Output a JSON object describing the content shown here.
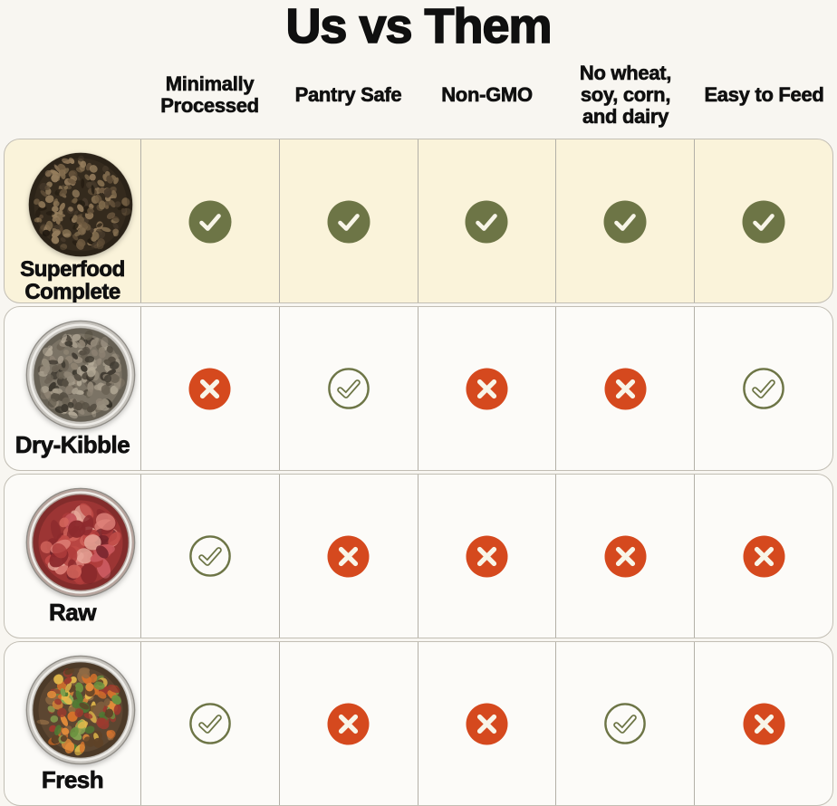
{
  "title": "Us vs Them",
  "columns": [
    "Minimally Processed",
    "Pantry Safe",
    "Non-GMO",
    "No wheat, soy, corn, and dairy",
    "Easy to Feed"
  ],
  "rows": [
    {
      "name": "Superfood Complete",
      "image": "superfood-complete-kibble-photo",
      "image_kind": "superfood",
      "highlight": true,
      "cells": [
        "yes",
        "yes",
        "yes",
        "yes",
        "yes"
      ]
    },
    {
      "name": "Dry-Kibble",
      "image": "dry-kibble-bowl-photo",
      "image_kind": "kibble",
      "highlight": false,
      "cells": [
        "no",
        "yes-outline",
        "no",
        "no",
        "yes-outline"
      ]
    },
    {
      "name": "Raw",
      "image": "raw-meat-bowl-photo",
      "image_kind": "raw",
      "highlight": false,
      "cells": [
        "yes-outline",
        "no",
        "no",
        "no",
        "no"
      ]
    },
    {
      "name": "Fresh",
      "image": "fresh-food-bowl-photo",
      "image_kind": "fresh",
      "highlight": false,
      "cells": [
        "yes-outline",
        "no",
        "no",
        "yes-outline",
        "no"
      ]
    }
  ],
  "icons": {
    "yes": "check-filled-circle-icon",
    "yes-outline": "check-outline-circle-icon",
    "no": "x-filled-circle-icon"
  },
  "colors": {
    "olive_green": "#6d7546",
    "orange_red": "#d5491e",
    "highlight_row_bg": "#faf3da",
    "row_bg": "#fcfbf8",
    "page_bg": "#f8f6f1",
    "border": "#c2beb4",
    "icon_mark_light": "#f8f5e8"
  },
  "chart_data": {
    "type": "table",
    "title": "Us vs Them",
    "columns": [
      "Minimally Processed",
      "Pantry Safe",
      "Non-GMO",
      "No wheat, soy, corn, and dairy",
      "Easy to Feed"
    ],
    "rows": [
      {
        "label": "Superfood Complete",
        "values": [
          "yes",
          "yes",
          "yes",
          "yes",
          "yes"
        ]
      },
      {
        "label": "Dry-Kibble",
        "values": [
          "no",
          "yes-outline",
          "no",
          "no",
          "yes-outline"
        ]
      },
      {
        "label": "Raw",
        "values": [
          "yes-outline",
          "no",
          "no",
          "no",
          "no"
        ]
      },
      {
        "label": "Fresh",
        "values": [
          "yes-outline",
          "no",
          "no",
          "yes-outline",
          "no"
        ]
      }
    ],
    "legend": {
      "yes": "solid olive-green circle with white checkmark",
      "yes-outline": "olive-green outlined circle with outlined checkmark",
      "no": "solid orange-red circle with white X"
    },
    "layout": {
      "highlighted_row": "Superfood Complete",
      "highlight_color": "#faf3da"
    }
  }
}
